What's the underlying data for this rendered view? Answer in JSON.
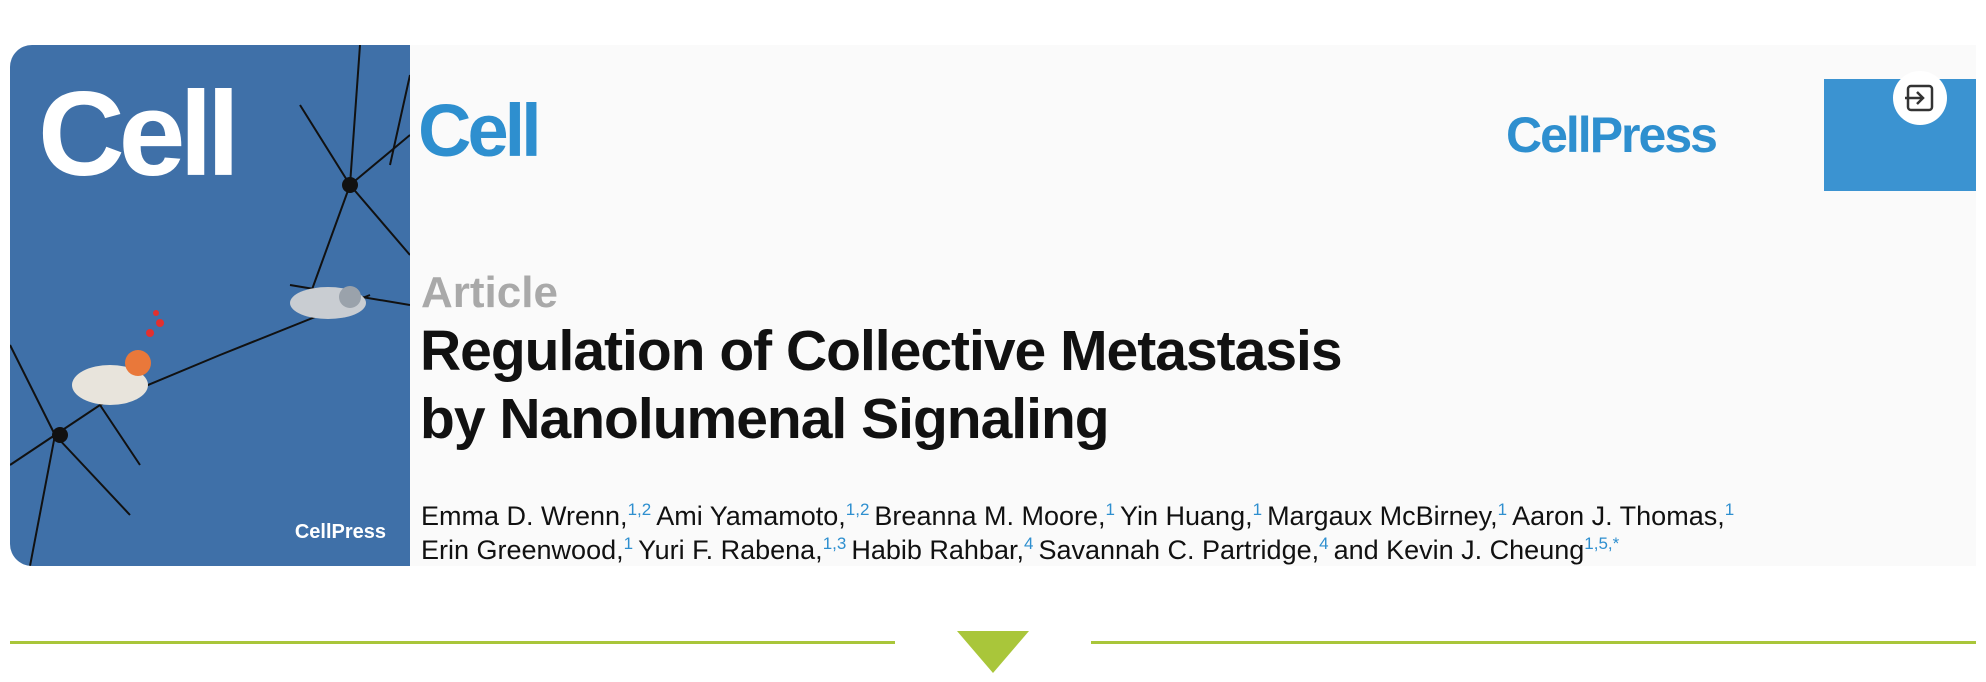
{
  "cover": {
    "logo": "Cell",
    "publisher": "CellPress"
  },
  "header": {
    "journal": "Cell",
    "publisher": "CellPress"
  },
  "article": {
    "label": "Article",
    "title_lines": [
      "Regulation of Collective Metastasis",
      "by Nanolumenal Signaling"
    ],
    "author_lines": [
      [
        {
          "name": "Emma D. Wrenn,",
          "affil": "1,2"
        },
        {
          "name": "Ami Yamamoto,",
          "affil": "1,2"
        },
        {
          "name": "Breanna M. Moore,",
          "affil": "1"
        },
        {
          "name": "Yin Huang,",
          "affil": "1"
        },
        {
          "name": "Margaux McBirney,",
          "affil": "1"
        },
        {
          "name": "Aaron J. Thomas,",
          "affil": "1"
        }
      ],
      [
        {
          "name": "Erin Greenwood,",
          "affil": "1"
        },
        {
          "name": "Yuri F. Rabena,",
          "affil": "1,3"
        },
        {
          "name": "Habib Rahbar,",
          "affil": "4"
        },
        {
          "name": "Savannah C. Partridge,",
          "affil": "4"
        },
        {
          "name": "and Kevin J. Cheung",
          "affil": "1,5,*"
        }
      ]
    ]
  }
}
